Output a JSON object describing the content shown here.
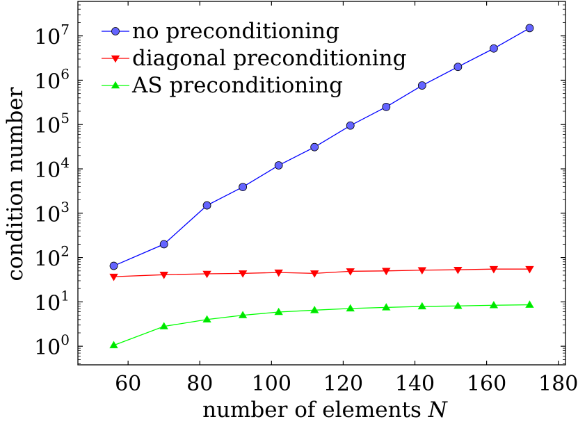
{
  "chart_data": {
    "type": "line",
    "title": "",
    "xlabel": "number of elements",
    "xlabel_var": "N",
    "ylabel": "condition number",
    "yscale": "log",
    "xlim": [
      46,
      182
    ],
    "ylim": [
      0.38,
      60000000
    ],
    "x_ticks": [
      60,
      80,
      100,
      120,
      140,
      160,
      180
    ],
    "y_ticks": [
      {
        "base": "10",
        "exp": "0",
        "value": 1
      },
      {
        "base": "10",
        "exp": "1",
        "value": 10
      },
      {
        "base": "10",
        "exp": "2",
        "value": 100
      },
      {
        "base": "10",
        "exp": "3",
        "value": 1000
      },
      {
        "base": "10",
        "exp": "4",
        "value": 10000
      },
      {
        "base": "10",
        "exp": "5",
        "value": 100000
      },
      {
        "base": "10",
        "exp": "6",
        "value": 1000000
      },
      {
        "base": "10",
        "exp": "7",
        "value": 10000000
      }
    ],
    "x": [
      56,
      70,
      82,
      92,
      102,
      112,
      122,
      132,
      142,
      152,
      162,
      172
    ],
    "grid": false,
    "legend_position": "top-left",
    "series": [
      {
        "name": "no preconditioning",
        "color": "#0000ff",
        "fill": "#6464ff",
        "marker": "circle",
        "values": [
          65,
          200,
          1500,
          3900,
          12000,
          31000,
          95000,
          250000,
          760000,
          2000000,
          5200000,
          15000000
        ]
      },
      {
        "name": "diagonal preconditioning",
        "color": "#ff0000",
        "fill": "#ff0000",
        "marker": "triangle-down",
        "values": [
          37,
          41,
          43,
          44,
          46,
          44,
          49,
          50,
          52,
          53,
          55,
          55
        ]
      },
      {
        "name": "AS preconditioning",
        "color": "#00ff00",
        "fill": "#00e000",
        "marker": "triangle-up",
        "values": [
          1.05,
          2.8,
          4.0,
          5.0,
          5.9,
          6.5,
          7.1,
          7.5,
          7.9,
          8.1,
          8.4,
          8.6
        ]
      }
    ]
  }
}
